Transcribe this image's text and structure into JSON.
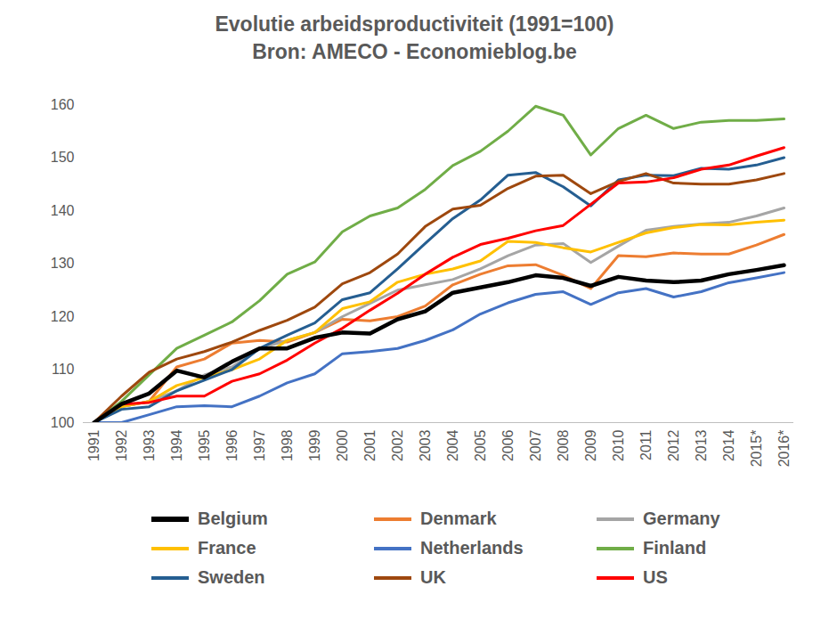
{
  "chart_data": {
    "type": "line",
    "title": "Evolutie arbeidsproductiviteit (1991=100)",
    "subtitle": "Bron: AMECO - Economieblog.be",
    "categories": [
      "1991",
      "1992",
      "1993",
      "1994",
      "1995",
      "1996",
      "1997",
      "1998",
      "1999",
      "2000",
      "2001",
      "2002",
      "2003",
      "2004",
      "2005",
      "2006",
      "2007",
      "2008",
      "2009",
      "2010",
      "2011",
      "2012",
      "2013",
      "2014",
      "2015*",
      "2016*"
    ],
    "series": [
      {
        "name": "Belgium",
        "color": "#000000",
        "values": [
          100,
          103.5,
          105.5,
          109.8,
          108.5,
          111.5,
          114,
          114,
          116,
          117,
          116.8,
          119.5,
          121,
          124.5,
          125.5,
          126.5,
          127.8,
          127.3,
          125.8,
          127.5,
          126.8,
          126.5,
          126.8,
          128,
          128.8,
          129.7
        ]
      },
      {
        "name": "Denmark",
        "color": "#ED7D31",
        "values": [
          100,
          103,
          104,
          110.5,
          112,
          115,
          115.5,
          115.2,
          117,
          119.5,
          119.2,
          120,
          122,
          126,
          128,
          129.6,
          129.8,
          127.8,
          125.3,
          131.5,
          131.3,
          132,
          131.8,
          131.8,
          133.5,
          135.5
        ]
      },
      {
        "name": "Germany",
        "color": "#A5A5A5",
        "values": [
          100,
          103,
          104,
          106,
          109,
          110.5,
          114,
          115.5,
          117,
          120,
          122.5,
          125,
          126,
          127,
          129,
          131.5,
          133.5,
          133.8,
          130.2,
          133.3,
          136.3,
          137,
          137.5,
          137.8,
          139,
          140.5
        ]
      },
      {
        "name": "France",
        "color": "#FFC000",
        "values": [
          100,
          103,
          104,
          107,
          108.5,
          110,
          112,
          115.5,
          117,
          121.5,
          122.8,
          126.5,
          128,
          129,
          130.5,
          134.2,
          134,
          133,
          132.2,
          134,
          135.8,
          136.8,
          137.4,
          137.3,
          137.8,
          138.2
        ]
      },
      {
        "name": "Netherlands",
        "color": "#4472C4",
        "values": [
          100,
          100,
          101.5,
          103,
          103.2,
          103,
          105,
          107.5,
          109.2,
          113,
          113.4,
          114,
          115.5,
          117.5,
          120.5,
          122.6,
          124.2,
          124.7,
          122.3,
          124.5,
          125.3,
          123.7,
          124.7,
          126.4,
          127.3,
          128.3
        ]
      },
      {
        "name": "Finland",
        "color": "#70AD47",
        "values": [
          100,
          104,
          109,
          114,
          116.5,
          119,
          123,
          128,
          130.3,
          136,
          139,
          140.5,
          144,
          148.5,
          151.2,
          155,
          159.7,
          158,
          150.5,
          155.5,
          158,
          155.5,
          156.7,
          157,
          157,
          157.3
        ]
      },
      {
        "name": "Sweden",
        "color": "#255E91",
        "values": [
          100,
          102.5,
          103,
          106,
          108,
          110,
          114,
          116.5,
          118.8,
          123.2,
          124.5,
          129,
          133.8,
          138.5,
          142,
          146.7,
          147.2,
          144.5,
          140.9,
          145.8,
          146.7,
          146.6,
          148,
          147.8,
          148.6,
          150
        ]
      },
      {
        "name": "UK",
        "color": "#9E480E",
        "values": [
          100,
          105,
          109.5,
          112,
          113.4,
          115.2,
          117.4,
          119.3,
          121.8,
          126.2,
          128.3,
          131.8,
          137,
          140.3,
          141,
          144.2,
          146.5,
          146.7,
          143.2,
          145.5,
          147,
          145.2,
          145,
          145,
          145.8,
          147
        ]
      },
      {
        "name": "US",
        "color": "#FF0000",
        "values": [
          100,
          103.5,
          103.8,
          105,
          105,
          107.8,
          109.2,
          111.8,
          115,
          117.8,
          121.2,
          124.4,
          128,
          131.2,
          133.6,
          134.8,
          136.2,
          137.2,
          141.2,
          145.2,
          145.4,
          146.2,
          147.8,
          148.6,
          150.3,
          151.9
        ]
      }
    ],
    "ylim": [
      100,
      160
    ],
    "yticks": [
      100,
      110,
      120,
      130,
      140,
      150,
      160
    ],
    "grid": false,
    "legend": "bottom"
  }
}
